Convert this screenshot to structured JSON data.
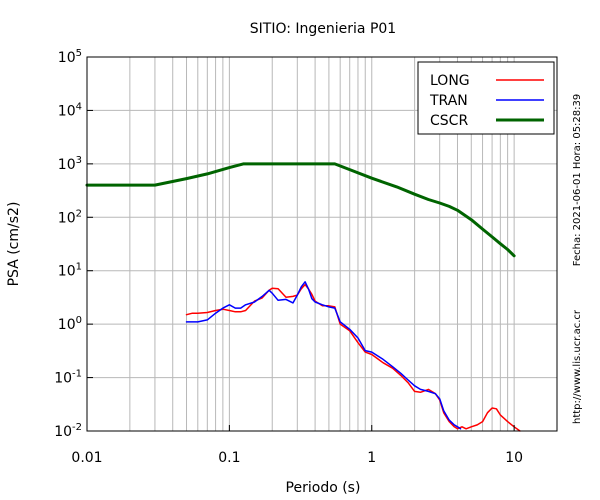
{
  "chart_data": {
    "type": "line",
    "title": "SITIO: Ingenieria P01",
    "xlabel": "Periodo (s)",
    "ylabel": "PSA (cm/s2)",
    "xscale": "log",
    "yscale": "log",
    "xlim": [
      0.01,
      20
    ],
    "ylim": [
      0.01,
      100000
    ],
    "xticks": [
      {
        "value": 0.01,
        "label": "0.01"
      },
      {
        "value": 0.1,
        "label": "0.1"
      },
      {
        "value": 1,
        "label": "1"
      },
      {
        "value": 10,
        "label": "10"
      }
    ],
    "yticks": [
      {
        "value": 0.01,
        "base": "10",
        "exp": "-2"
      },
      {
        "value": 0.1,
        "base": "10",
        "exp": "-1"
      },
      {
        "value": 1,
        "base": "10",
        "exp": "0"
      },
      {
        "value": 10,
        "base": "10",
        "exp": "1"
      },
      {
        "value": 100,
        "base": "10",
        "exp": "2"
      },
      {
        "value": 1000,
        "base": "10",
        "exp": "3"
      },
      {
        "value": 10000,
        "base": "10",
        "exp": "4"
      },
      {
        "value": 100000,
        "base": "10",
        "exp": "5"
      }
    ],
    "grid": "vertical",
    "legend_position": "top-right",
    "series": [
      {
        "name": "LONG",
        "color": "#ff0000",
        "width": 1.5,
        "x": [
          0.05,
          0.055,
          0.06,
          0.07,
          0.08,
          0.09,
          0.1,
          0.11,
          0.12,
          0.13,
          0.15,
          0.17,
          0.19,
          0.2,
          0.22,
          0.25,
          0.28,
          0.3,
          0.32,
          0.34,
          0.36,
          0.38,
          0.4,
          0.45,
          0.5,
          0.55,
          0.6,
          0.7,
          0.8,
          0.9,
          1.0,
          1.2,
          1.4,
          1.6,
          1.8,
          2.0,
          2.2,
          2.5,
          2.8,
          3.0,
          3.2,
          3.5,
          3.8,
          4.0,
          4.3,
          4.6,
          5.0,
          5.5,
          6.0,
          6.5,
          7.0,
          7.5,
          8.0,
          9.0,
          10.0,
          11.0
        ],
        "y": [
          1.5,
          1.6,
          1.6,
          1.65,
          1.8,
          1.9,
          1.8,
          1.7,
          1.7,
          1.8,
          2.7,
          3.1,
          4.3,
          4.7,
          4.6,
          3.2,
          3.3,
          3.5,
          4.6,
          5.5,
          4.5,
          3.6,
          2.7,
          2.2,
          2.2,
          2.1,
          1.0,
          0.75,
          0.45,
          0.3,
          0.27,
          0.19,
          0.15,
          0.11,
          0.08,
          0.055,
          0.053,
          0.06,
          0.05,
          0.038,
          0.022,
          0.015,
          0.012,
          0.011,
          0.012,
          0.011,
          0.012,
          0.013,
          0.015,
          0.022,
          0.027,
          0.026,
          0.02,
          0.015,
          0.012,
          0.01
        ]
      },
      {
        "name": "TRAN",
        "color": "#0000ff",
        "width": 1.5,
        "x": [
          0.05,
          0.06,
          0.07,
          0.08,
          0.09,
          0.1,
          0.11,
          0.12,
          0.13,
          0.15,
          0.17,
          0.19,
          0.2,
          0.22,
          0.25,
          0.28,
          0.3,
          0.32,
          0.34,
          0.36,
          0.38,
          0.4,
          0.45,
          0.5,
          0.55,
          0.6,
          0.7,
          0.8,
          0.9,
          1.0,
          1.2,
          1.4,
          1.6,
          1.8,
          2.0,
          2.2,
          2.5,
          2.8,
          3.0,
          3.2,
          3.5,
          3.8,
          4.0,
          4.2
        ],
        "y": [
          1.1,
          1.1,
          1.2,
          1.6,
          2.0,
          2.3,
          2.0,
          2.0,
          2.3,
          2.6,
          3.3,
          4.3,
          3.8,
          2.8,
          2.9,
          2.5,
          3.5,
          5.0,
          6.2,
          4.5,
          3.0,
          2.6,
          2.3,
          2.1,
          2.0,
          1.1,
          0.8,
          0.55,
          0.32,
          0.3,
          0.22,
          0.16,
          0.12,
          0.09,
          0.07,
          0.06,
          0.055,
          0.05,
          0.04,
          0.024,
          0.016,
          0.013,
          0.012,
          0.011
        ]
      },
      {
        "name": "CSCR",
        "color": "#006400",
        "width": 3,
        "x": [
          0.01,
          0.03,
          0.05,
          0.07,
          0.1,
          0.125,
          0.15,
          0.2,
          0.3,
          0.4,
          0.55,
          0.7,
          1.0,
          1.5,
          2.0,
          2.5,
          3.0,
          3.5,
          4.0,
          5.0,
          6.0,
          7.0,
          8.0,
          9.0,
          10.0
        ],
        "y": [
          400,
          400,
          530,
          650,
          850,
          1000,
          1000,
          1000,
          1000,
          1000,
          1000,
          780,
          540,
          370,
          270,
          215,
          185,
          160,
          135,
          90,
          60,
          43,
          32,
          25,
          19
        ]
      }
    ]
  },
  "side": {
    "date_text": "Fecha: 2021-06-01 Hora: 05:28:39",
    "url_text": "http://www.lis.ucr.ac.cr"
  }
}
